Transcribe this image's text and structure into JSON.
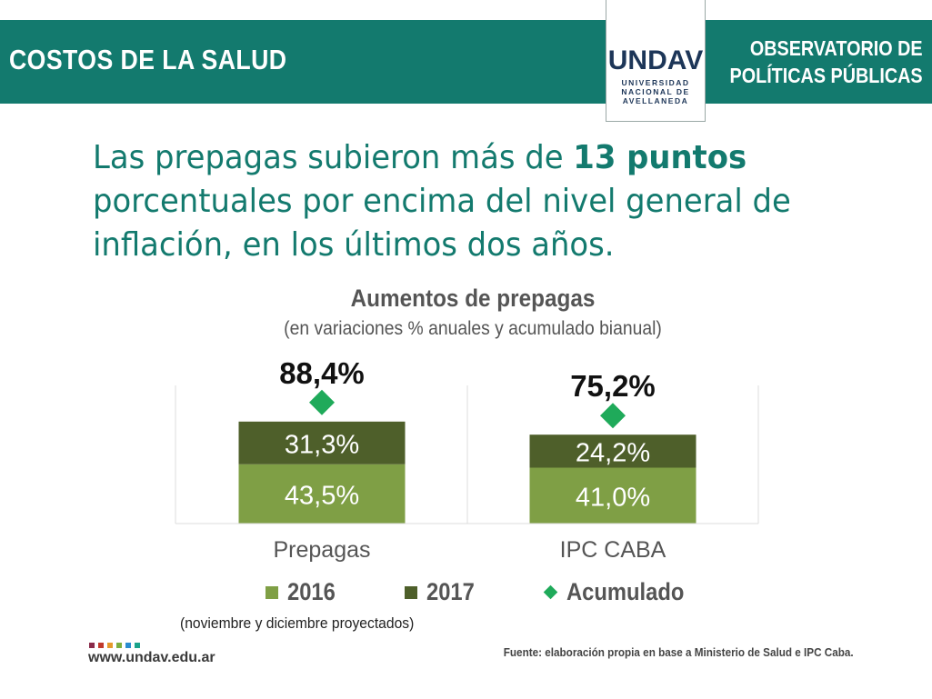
{
  "header": {
    "section_title": "COSTOS DE LA SALUD",
    "observatory_line1": "OBSERVATORIO DE",
    "observatory_line2": "POLÍTICAS PÚBLICAS",
    "logo_mark": "UNDAV",
    "logo_line1": "UNIVERSIDAD",
    "logo_line2": "NACIONAL DE",
    "logo_line3": "AVELLANEDA"
  },
  "headline": {
    "part1": "Las prepagas subieron más de ",
    "highlight": "13 puntos",
    "part2": " porcentuales por encima del nivel general de inflación, en los últimos dos años."
  },
  "note": "(noviembre y diciembre proyectados)",
  "footer": {
    "website": "www.undav.edu.ar",
    "source": "Fuente: elaboración propia en base a Ministerio de Salud e IPC Caba.",
    "dot_colors": [
      "#8a2b4a",
      "#c0392b",
      "#e59a2b",
      "#7cae3f",
      "#2a8ccf",
      "#1aa38a"
    ]
  },
  "colors": {
    "header_band": "#137a6e",
    "series_2016": "#7f9f45",
    "series_2017": "#4e5f2a",
    "acumulado": "#1faa5a"
  },
  "chart_data": {
    "type": "bar",
    "stacked": true,
    "title": "Aumentos de prepagas",
    "subtitle": "(en variaciones % anuales y acumulado bianual)",
    "categories": [
      "Prepagas",
      "IPC CABA"
    ],
    "series": [
      {
        "name": "2016",
        "values": [
          43.5,
          41.0
        ],
        "labels": [
          "43,5%",
          "41,0%"
        ],
        "color": "#7f9f45"
      },
      {
        "name": "2017",
        "values": [
          31.3,
          24.2
        ],
        "labels": [
          "31,3%",
          "24,2%"
        ],
        "color": "#4e5f2a"
      }
    ],
    "markers": {
      "name": "Acumulado",
      "values": [
        88.4,
        75.2
      ],
      "labels": [
        "88,4%",
        "75,2%"
      ],
      "color": "#1faa5a"
    },
    "legend": [
      "2016",
      "2017",
      "Acumulado"
    ],
    "legend_position": "bottom",
    "grid": false
  }
}
